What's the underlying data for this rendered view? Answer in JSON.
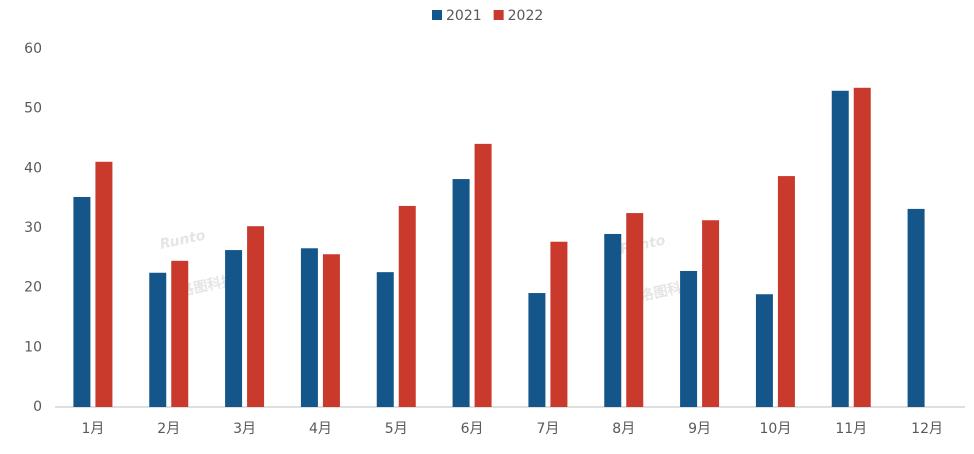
{
  "chart_data": {
    "type": "bar",
    "categories": [
      "1月",
      "2月",
      "3月",
      "4月",
      "5月",
      "6月",
      "7月",
      "8月",
      "9月",
      "10月",
      "11月",
      "12月"
    ],
    "series": [
      {
        "name": "2021",
        "color": "#14568a",
        "values": [
          35.2,
          22.5,
          26.3,
          26.6,
          22.6,
          38.2,
          19.1,
          29.0,
          22.8,
          18.9,
          53.0,
          33.2
        ]
      },
      {
        "name": "2022",
        "color": "#c9392c",
        "values": [
          41.1,
          24.5,
          30.3,
          25.6,
          33.7,
          44.1,
          27.7,
          32.5,
          31.3,
          38.7,
          53.5,
          null
        ]
      }
    ],
    "ylim": [
      0,
      60
    ],
    "yticks": [
      0,
      10,
      20,
      30,
      40,
      50,
      60
    ],
    "grid": false,
    "legend": "top",
    "watermark": [
      {
        "brand": "Runto",
        "company": "洛图科技"
      },
      {
        "brand": "Runto",
        "company": "洛图科技"
      }
    ]
  }
}
